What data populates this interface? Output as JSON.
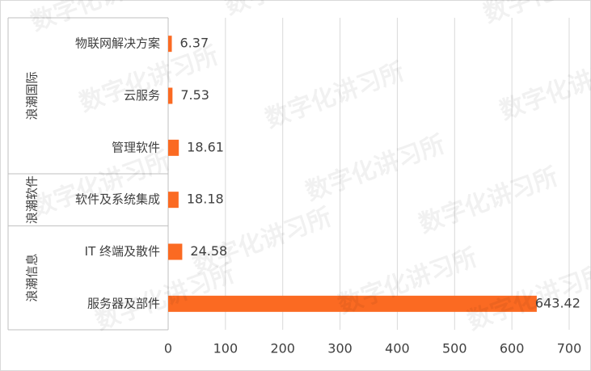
{
  "chart_data": {
    "type": "bar",
    "orientation": "horizontal",
    "groups": [
      {
        "name": "浪潮国际",
        "categories": [
          "物联网解决方案",
          "云服务",
          "管理软件"
        ],
        "values": [
          6.37,
          7.53,
          18.61
        ]
      },
      {
        "name": "浪潮软件",
        "categories": [
          "软件及系统集成"
        ],
        "values": [
          18.18
        ]
      },
      {
        "name": "浪潮信息",
        "categories": [
          "IT 终端及散件",
          "服务器及部件"
        ],
        "values": [
          24.58,
          643.42
        ]
      }
    ],
    "color": "#fb6a22",
    "xlim": [
      0,
      700
    ],
    "xticks": [
      0,
      100,
      200,
      300,
      400,
      500,
      600,
      700
    ],
    "grid": true,
    "watermark": "数字化讲习所"
  }
}
